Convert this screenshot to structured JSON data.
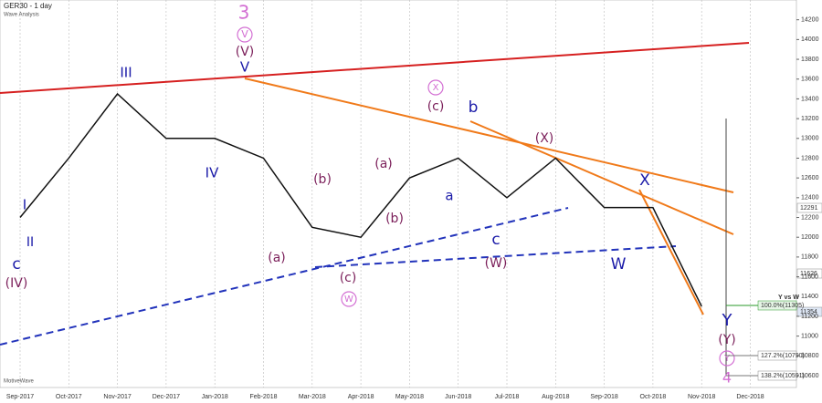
{
  "chart_data": {
    "type": "line",
    "title": "GER30 - 1 day",
    "subtitle": "Wave Analysis",
    "footer": "MotiveWave",
    "categories": [
      "Sep-2017",
      "Oct-2017",
      "Nov-2017",
      "Dec-2017",
      "Jan-2018",
      "Feb-2018",
      "Mar-2018",
      "Apr-2018",
      "May-2018",
      "Jun-2018",
      "Jul-2018",
      "Aug-2018",
      "Sep-2018",
      "Oct-2018",
      "Nov-2018",
      "Dec-2018"
    ],
    "series": [
      {
        "name": "GER30",
        "color": "#111111",
        "values": [
          12200,
          12800,
          13450,
          13000,
          13000,
          12800,
          12100,
          12000,
          12600,
          12800,
          12400,
          12800,
          12300,
          12300,
          11300,
          null
        ]
      }
    ],
    "ylim": [
      10480,
      14400
    ],
    "yticks": [
      10600,
      10800,
      11000,
      11200,
      11400,
      11600,
      11800,
      12000,
      12200,
      12400,
      12600,
      12800,
      13000,
      13200,
      13400,
      13600,
      13800,
      14000,
      14200
    ],
    "grid": true,
    "annotations": [
      "3",
      "V",
      "(V)",
      "V",
      "III",
      "IV",
      "I",
      "II",
      "c",
      "(IV)",
      "(a)",
      "(b)",
      "(c)",
      "W",
      "(a)",
      "(b)",
      "X",
      "(c)",
      "b",
      "a",
      "c",
      "(W)",
      "(X)",
      "X",
      "W",
      "Y",
      "(Y)",
      "Y",
      "4"
    ],
    "price_labels": [
      "12291",
      "11626",
      "11354"
    ],
    "fib_labels": [
      "100.0%(11305)",
      "127.2%(10790)",
      "138.2%(10591)"
    ],
    "fib_title": "Y vs W"
  }
}
